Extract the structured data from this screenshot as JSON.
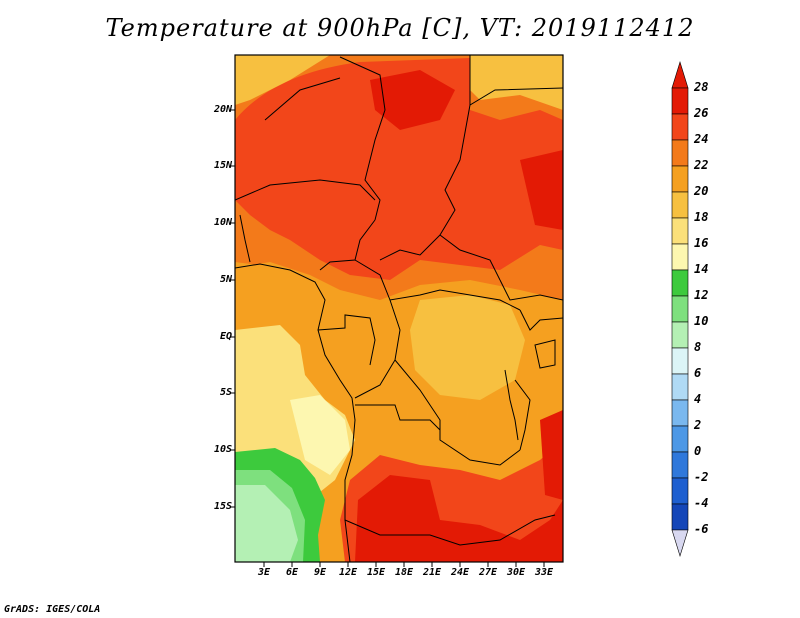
{
  "title": "Temperature at 900hPa [C], VT: 2019112412",
  "credit": "GrADS: IGES/COLA",
  "map": {
    "lat_ticks": [
      "20N",
      "15N",
      "10N",
      "5N",
      "EQ",
      "5S",
      "10S",
      "15S"
    ],
    "lon_ticks": [
      "3E",
      "6E",
      "9E",
      "12E",
      "15E",
      "18E",
      "21E",
      "24E",
      "27E",
      "30E",
      "33E"
    ]
  },
  "colorbar": {
    "labels": [
      "28",
      "26",
      "24",
      "22",
      "20",
      "18",
      "16",
      "14",
      "12",
      "10",
      "8",
      "6",
      "4",
      "2",
      "0",
      "-2",
      "-4",
      "-6"
    ],
    "colors": {
      "c28": "#e31a05",
      "c26": "#f2461a",
      "c24": "#f37a1a",
      "c22": "#f5a020",
      "c20": "#f7c040",
      "c18": "#fbe07a",
      "c16": "#fdf7b0",
      "c14": "#3dca3d",
      "c12": "#7ee07e",
      "c10": "#b4f0b4",
      "c8": "#dcf5f7",
      "c6": "#b0daf5",
      "c4": "#7ab8ef",
      "c2": "#4d98e6",
      "c0": "#2f78db",
      "cm2": "#1e5fd0",
      "cm4": "#1446b8",
      "cm6": "#0a1a8a",
      "over": "#e31a05",
      "under": "#d8d8f0"
    }
  }
}
